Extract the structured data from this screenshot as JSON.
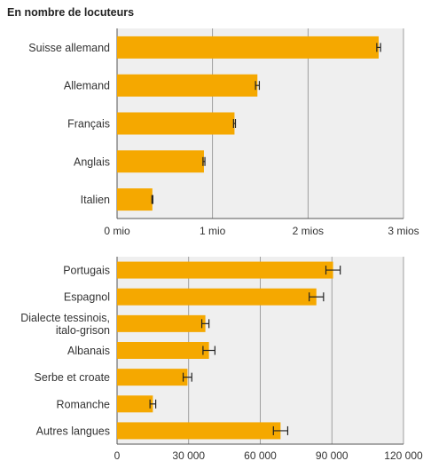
{
  "title": "En nombre de locuteurs",
  "colors": {
    "bar": "#f5a800",
    "plot_bg": "#efefef",
    "grid": "#8a8a8a",
    "error": "#222222"
  },
  "chart_data": [
    {
      "type": "bar",
      "orientation": "horizontal",
      "categories": [
        "Suisse allemand",
        "Allemand",
        "Français",
        "Anglais",
        "Italien"
      ],
      "values": [
        2.74,
        1.47,
        1.23,
        0.91,
        0.37
      ],
      "error_margin": [
        0.02,
        0.02,
        0.01,
        0.01,
        0.005
      ],
      "xlim": [
        0,
        3
      ],
      "ticks": [
        0,
        1,
        2,
        3
      ],
      "tick_labels": [
        "0 mio",
        "1 mio",
        "2 mios",
        "3 mios"
      ],
      "grid": true
    },
    {
      "type": "bar",
      "orientation": "horizontal",
      "categories": [
        "Portugais",
        "Espagnol",
        "Dialecte tessinois, italo-grison",
        "Albanais",
        "Serbe et croate",
        "Romanche",
        "Autres langues"
      ],
      "category_lines": [
        [
          "Portugais"
        ],
        [
          "Espagnol"
        ],
        [
          "Dialecte tessinois,",
          "italo-grison"
        ],
        [
          "Albanais"
        ],
        [
          "Serbe et croate"
        ],
        [
          "Romanche"
        ],
        [
          "Autres langues"
        ]
      ],
      "values": [
        90500,
        83500,
        37000,
        38500,
        29500,
        15000,
        68500
      ],
      "error_margin": [
        3000,
        3000,
        1500,
        2500,
        1800,
        1200,
        3000
      ],
      "xlim": [
        0,
        120000
      ],
      "ticks": [
        0,
        30000,
        60000,
        90000,
        120000
      ],
      "tick_labels": [
        "0",
        "30 000",
        "60 000",
        "90 000",
        "120 000"
      ],
      "grid": true
    }
  ]
}
